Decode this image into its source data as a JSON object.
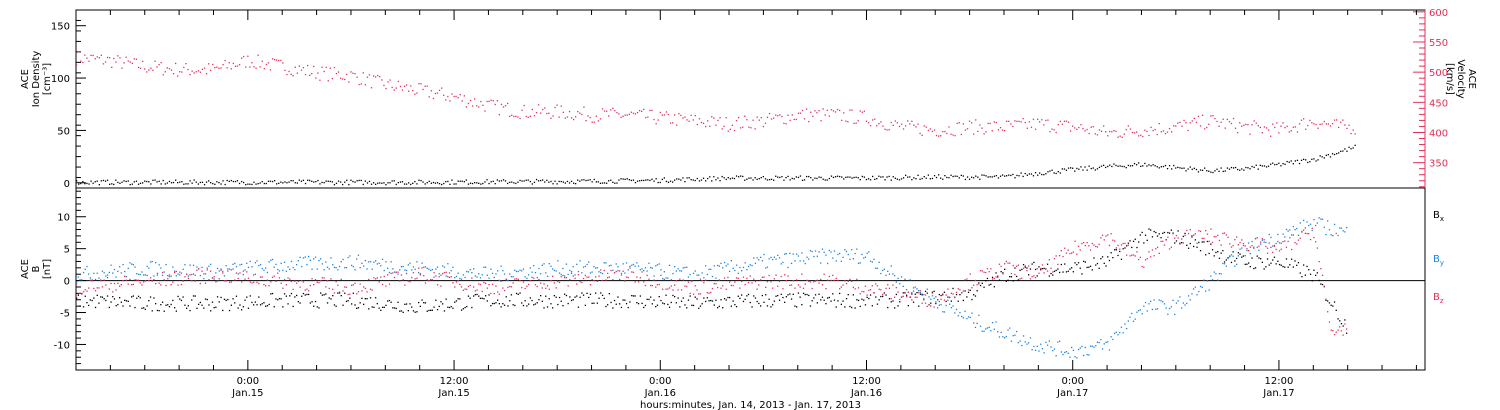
{
  "colors": {
    "black": "#000000",
    "pink": "#e0305a",
    "blue": "#1a84e0"
  },
  "xaxis": {
    "tick_labels": [
      {
        "time": "0:00",
        "date": "Jan.15"
      },
      {
        "time": "12:00",
        "date": "Jan.15"
      },
      {
        "time": "0:00",
        "date": "Jan.16"
      },
      {
        "time": "12:00",
        "date": "Jan.16"
      },
      {
        "time": "0:00",
        "date": "Jan.17"
      },
      {
        "time": "12:00",
        "date": "Jan.17"
      }
    ],
    "title": "hours:minutes, Jan. 14, 2013 - Jan. 17, 2013"
  },
  "chart_data": [
    {
      "type": "scatter",
      "panel": "top",
      "xlabel": "hours:minutes, Jan. 14, 2013 - Jan. 17, 2013",
      "xlim_hours": [
        -10,
        68.5
      ],
      "left_axis": {
        "label_lines": [
          "ACE",
          "Ion Density",
          "[cm⁻³]"
        ],
        "ylim": [
          -5,
          165
        ],
        "ticks": [
          0,
          50,
          100,
          150
        ]
      },
      "right_axis": {
        "label_lines": [
          "ACE",
          "Velocity",
          "[km/s]"
        ],
        "ylim": [
          308,
          603
        ],
        "ticks": [
          350,
          400,
          450,
          500,
          550,
          600
        ]
      },
      "series": [
        {
          "axis": "right",
          "color": "pink",
          "x": [
            -10,
            -8,
            -6,
            -4,
            -2,
            0,
            2,
            4,
            6,
            8,
            10,
            12,
            14,
            16,
            18,
            20,
            22,
            24,
            26,
            28,
            30,
            32,
            34,
            36,
            38,
            40,
            42,
            44,
            46,
            48,
            50,
            52,
            54,
            56,
            58,
            60,
            62,
            63.5,
            64.5
          ],
          "y": [
            525,
            520,
            510,
            505,
            505,
            520,
            510,
            500,
            495,
            480,
            470,
            460,
            445,
            435,
            435,
            430,
            430,
            425,
            420,
            415,
            420,
            430,
            430,
            425,
            410,
            405,
            410,
            410,
            415,
            410,
            400,
            405,
            410,
            420,
            410,
            405,
            420,
            410,
            410
          ]
        },
        {
          "axis": "left",
          "color": "black",
          "x": [
            -10,
            0,
            10,
            20,
            24,
            28,
            32,
            36,
            40,
            44,
            46,
            48,
            50,
            52,
            54,
            56,
            58,
            60,
            62,
            63.5,
            64.5
          ],
          "y": [
            1,
            1,
            1,
            2,
            3,
            5,
            5,
            5,
            6,
            6,
            10,
            13,
            16,
            18,
            15,
            12,
            14,
            18,
            23,
            30,
            35
          ]
        }
      ]
    },
    {
      "type": "scatter",
      "panel": "bottom",
      "xlabel": "hours:minutes, Jan. 14, 2013 - Jan. 17, 2013",
      "xlim_hours": [
        -10,
        68.5
      ],
      "left_axis": {
        "label_lines": [
          "ACE",
          "B",
          "[nT]"
        ],
        "ylim": [
          -14,
          14.5
        ],
        "ticks": [
          -10,
          -5,
          0,
          5,
          10
        ]
      },
      "series": [
        {
          "name": "Bx",
          "color": "black",
          "x": [
            -10,
            -6,
            -2,
            2,
            6,
            10,
            14,
            18,
            22,
            26,
            30,
            34,
            38,
            42,
            44,
            46,
            48,
            50,
            52,
            54,
            56,
            58,
            60,
            62,
            64
          ],
          "y": [
            -3,
            -3.5,
            -3.5,
            -3,
            -3,
            -4,
            -3,
            -3,
            -3,
            -3.5,
            -3,
            -3,
            -3,
            -2,
            1,
            2,
            2,
            3,
            7,
            7,
            5,
            3,
            3,
            1,
            -7.5
          ]
        },
        {
          "name": "By",
          "color": "blue",
          "x": [
            -10,
            -6,
            -2,
            2,
            6,
            10,
            14,
            18,
            22,
            26,
            30,
            34,
            36,
            38,
            40,
            42,
            44,
            46,
            48,
            50,
            52,
            54,
            56,
            58,
            60,
            62,
            64
          ],
          "y": [
            1,
            2,
            1.5,
            2.5,
            3,
            2,
            1,
            2,
            2,
            1,
            3,
            4,
            4,
            0,
            -3,
            -6,
            -8,
            -10,
            -11,
            -10,
            -4,
            -4,
            0,
            5,
            7,
            9,
            7.5
          ]
        },
        {
          "name": "Bz",
          "color": "pink",
          "x": [
            -10,
            -6,
            -2,
            2,
            6,
            10,
            14,
            18,
            22,
            26,
            30,
            34,
            38,
            40,
            42,
            44,
            46,
            48,
            50,
            52,
            54,
            56,
            58,
            60,
            62,
            63,
            64
          ],
          "y": [
            -1,
            0,
            1,
            0,
            -1,
            1,
            -1,
            0,
            1,
            -1,
            0,
            0,
            -2,
            -3,
            0,
            2,
            1,
            5,
            7,
            3,
            7,
            7,
            6,
            5,
            8,
            -8,
            -7
          ]
        }
      ]
    }
  ],
  "legend": [
    {
      "label": "B",
      "sub": "x",
      "color": "black"
    },
    {
      "label": "B",
      "sub": "y",
      "color": "blue"
    },
    {
      "label": "B",
      "sub": "z",
      "color": "pink"
    }
  ]
}
